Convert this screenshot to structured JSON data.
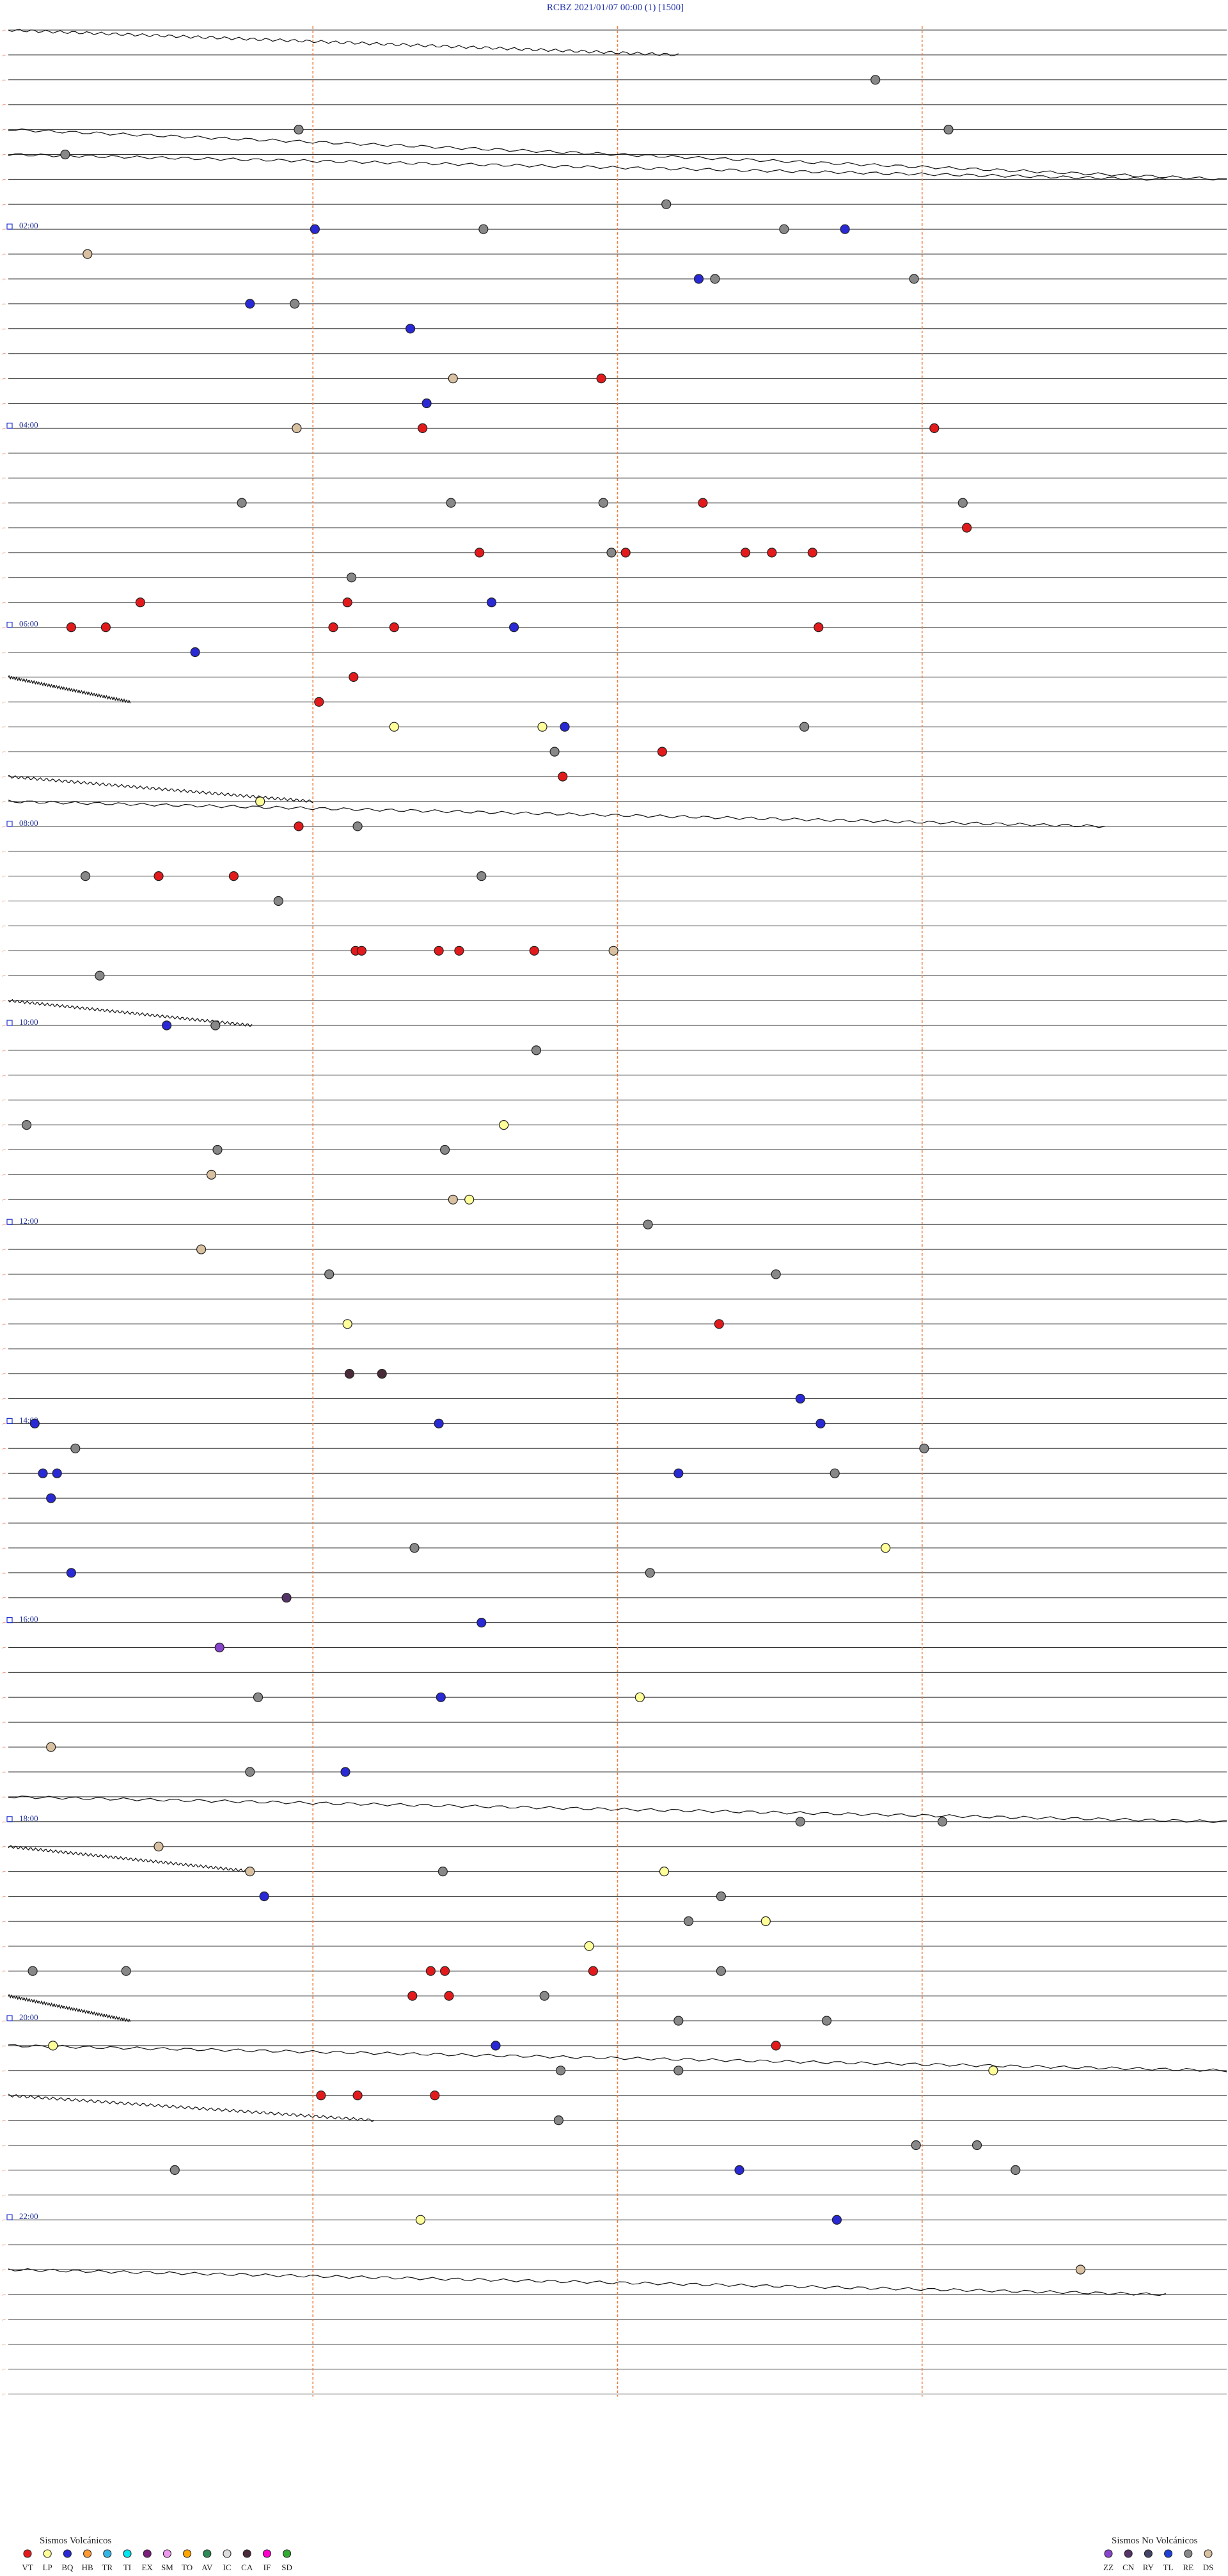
{
  "chart_data": {
    "type": "scatter",
    "title": "RCBZ    2021/01/07 00:00    (1)    [1500]",
    "hour_labels": [
      "02:00",
      "04:00",
      "06:00",
      "08:00",
      "10:00",
      "12:00",
      "14:00",
      "16:00",
      "18:00",
      "20:00",
      "22:00"
    ],
    "minute_grid": [
      15,
      30,
      45
    ],
    "rows_total": 96,
    "row_minutes": 15,
    "legend_left": {
      "title": "Sismos Volcánicos",
      "items": [
        {
          "code": "VT",
          "color": "#e31a1c"
        },
        {
          "code": "LP",
          "color": "#ffff99"
        },
        {
          "code": "BQ",
          "color": "#2929d6"
        },
        {
          "code": "HB",
          "color": "#ff9933"
        },
        {
          "code": "TR",
          "color": "#33b5e5"
        },
        {
          "code": "TI",
          "color": "#00e5ee"
        },
        {
          "code": "EX",
          "color": "#7a1f7a"
        },
        {
          "code": "SM",
          "color": "#ee99ee"
        },
        {
          "code": "TO",
          "color": "#ffa500"
        },
        {
          "code": "AV",
          "color": "#2e8b57"
        },
        {
          "code": "IC",
          "color": "#dddddd"
        },
        {
          "code": "CA",
          "color": "#4a2b3a"
        },
        {
          "code": "IF",
          "color": "#ff00cc"
        },
        {
          "code": "SD",
          "color": "#33aa33"
        }
      ]
    },
    "legend_right": {
      "title": "Sismos No Volcánicos",
      "items": [
        {
          "code": "ZZ",
          "color": "#8844cc"
        },
        {
          "code": "CN",
          "color": "#553366"
        },
        {
          "code": "RY",
          "color": "#444466"
        },
        {
          "code": "TL",
          "color": "#1f3fd6"
        },
        {
          "code": "RE",
          "color": "#888888"
        },
        {
          "code": "DS",
          "color": "#d8c0a0"
        }
      ]
    },
    "events": [
      {
        "row": 2,
        "min": 42.7,
        "type": "RE"
      },
      {
        "row": 4,
        "min": 14.3,
        "type": "RE"
      },
      {
        "row": 4,
        "min": 46.3,
        "type": "RE"
      },
      {
        "row": 5,
        "min": 2.8,
        "type": "RE"
      },
      {
        "row": 8,
        "min": 15.1,
        "type": "BQ"
      },
      {
        "row": 8,
        "min": 23.4,
        "type": "RE"
      },
      {
        "row": 8,
        "min": 41.2,
        "type": "BQ"
      },
      {
        "row": 7,
        "min": 32.4,
        "type": "RE"
      },
      {
        "row": 9,
        "min": 3.9,
        "type": "DS"
      },
      {
        "row": 8,
        "min": 38.2,
        "type": "RE"
      },
      {
        "row": 10,
        "min": 34.0,
        "type": "BQ"
      },
      {
        "row": 10,
        "min": 34.8,
        "type": "RE"
      },
      {
        "row": 10,
        "min": 44.6,
        "type": "RE"
      },
      {
        "row": 11,
        "min": 11.9,
        "type": "BQ"
      },
      {
        "row": 11,
        "min": 14.1,
        "type": "RE"
      },
      {
        "row": 12,
        "min": 19.8,
        "type": "BQ"
      },
      {
        "row": 14,
        "min": 21.9,
        "type": "DS"
      },
      {
        "row": 14,
        "min": 29.2,
        "type": "VT"
      },
      {
        "row": 15,
        "min": 20.6,
        "type": "BQ"
      },
      {
        "row": 16,
        "min": 14.2,
        "type": "DS"
      },
      {
        "row": 16,
        "min": 20.4,
        "type": "VT"
      },
      {
        "row": 16,
        "min": 45.6,
        "type": "VT"
      },
      {
        "row": 19,
        "min": 11.5,
        "type": "RE"
      },
      {
        "row": 19,
        "min": 21.8,
        "type": "RE"
      },
      {
        "row": 19,
        "min": 29.3,
        "type": "RE"
      },
      {
        "row": 19,
        "min": 34.2,
        "type": "VT"
      },
      {
        "row": 19,
        "min": 47.0,
        "type": "RE"
      },
      {
        "row": 20,
        "min": 47.2,
        "type": "VT"
      },
      {
        "row": 21,
        "min": 23.2,
        "type": "VT"
      },
      {
        "row": 21,
        "min": 29.7,
        "type": "RE"
      },
      {
        "row": 21,
        "min": 30.4,
        "type": "VT"
      },
      {
        "row": 21,
        "min": 36.3,
        "type": "VT"
      },
      {
        "row": 21,
        "min": 37.6,
        "type": "VT"
      },
      {
        "row": 21,
        "min": 39.6,
        "type": "VT"
      },
      {
        "row": 22,
        "min": 16.9,
        "type": "RE"
      },
      {
        "row": 23,
        "min": 16.7,
        "type": "VT"
      },
      {
        "row": 23,
        "min": 6.5,
        "type": "VT"
      },
      {
        "row": 23,
        "min": 23.8,
        "type": "BQ"
      },
      {
        "row": 24,
        "min": 3.1,
        "type": "VT"
      },
      {
        "row": 24,
        "min": 4.8,
        "type": "VT"
      },
      {
        "row": 24,
        "min": 16.0,
        "type": "VT"
      },
      {
        "row": 24,
        "min": 19.0,
        "type": "VT"
      },
      {
        "row": 24,
        "min": 24.9,
        "type": "BQ"
      },
      {
        "row": 24,
        "min": 39.9,
        "type": "VT"
      },
      {
        "row": 25,
        "min": 9.2,
        "type": "BQ"
      },
      {
        "row": 26,
        "min": 17.0,
        "type": "VT"
      },
      {
        "row": 27,
        "min": 15.3,
        "type": "VT"
      },
      {
        "row": 28,
        "min": 19.0,
        "type": "LP"
      },
      {
        "row": 28,
        "min": 26.3,
        "type": "LP"
      },
      {
        "row": 28,
        "min": 27.4,
        "type": "BQ"
      },
      {
        "row": 28,
        "min": 39.2,
        "type": "RE"
      },
      {
        "row": 29,
        "min": 26.9,
        "type": "RE"
      },
      {
        "row": 29,
        "min": 32.2,
        "type": "VT"
      },
      {
        "row": 30,
        "min": 27.3,
        "type": "VT"
      },
      {
        "row": 31,
        "min": 12.4,
        "type": "LP"
      },
      {
        "row": 32,
        "min": 14.3,
        "type": "VT"
      },
      {
        "row": 32,
        "min": 17.2,
        "type": "RE"
      },
      {
        "row": 34,
        "min": 3.8,
        "type": "RE"
      },
      {
        "row": 34,
        "min": 7.4,
        "type": "VT"
      },
      {
        "row": 34,
        "min": 11.1,
        "type": "VT"
      },
      {
        "row": 34,
        "min": 23.3,
        "type": "RE"
      },
      {
        "row": 35,
        "min": 13.3,
        "type": "RE"
      },
      {
        "row": 37,
        "min": 17.1,
        "type": "VT"
      },
      {
        "row": 37,
        "min": 17.4,
        "type": "VT"
      },
      {
        "row": 37,
        "min": 21.2,
        "type": "VT"
      },
      {
        "row": 37,
        "min": 25.9,
        "type": "VT"
      },
      {
        "row": 37,
        "min": 22.2,
        "type": "VT"
      },
      {
        "row": 37,
        "min": 29.8,
        "type": "DS"
      },
      {
        "row": 38,
        "min": 4.5,
        "type": "RE"
      },
      {
        "row": 40,
        "min": 7.8,
        "type": "BQ"
      },
      {
        "row": 40,
        "min": 10.2,
        "type": "RE"
      },
      {
        "row": 41,
        "min": 26.0,
        "type": "RE"
      },
      {
        "row": 44,
        "min": 0.9,
        "type": "RE"
      },
      {
        "row": 44,
        "min": 24.4,
        "type": "LP"
      },
      {
        "row": 45,
        "min": 10.3,
        "type": "RE"
      },
      {
        "row": 45,
        "min": 21.5,
        "type": "RE"
      },
      {
        "row": 46,
        "min": 10.0,
        "type": "DS"
      },
      {
        "row": 47,
        "min": 21.9,
        "type": "DS"
      },
      {
        "row": 47,
        "min": 22.7,
        "type": "LP"
      },
      {
        "row": 48,
        "min": 31.5,
        "type": "RE"
      },
      {
        "row": 49,
        "min": 9.5,
        "type": "DS"
      },
      {
        "row": 50,
        "min": 15.8,
        "type": "RE"
      },
      {
        "row": 50,
        "min": 37.8,
        "type": "RE"
      },
      {
        "row": 52,
        "min": 16.7,
        "type": "LP"
      },
      {
        "row": 52,
        "min": 35.0,
        "type": "VT"
      },
      {
        "row": 54,
        "min": 16.8,
        "type": "CA"
      },
      {
        "row": 54,
        "min": 18.4,
        "type": "CA"
      },
      {
        "row": 56,
        "min": 1.3,
        "type": "BQ"
      },
      {
        "row": 56,
        "min": 21.2,
        "type": "BQ"
      },
      {
        "row": 55,
        "min": 39.0,
        "type": "BQ"
      },
      {
        "row": 56,
        "min": 40.0,
        "type": "BQ"
      },
      {
        "row": 57,
        "min": 3.3,
        "type": "RE"
      },
      {
        "row": 57,
        "min": 45.1,
        "type": "RE"
      },
      {
        "row": 58,
        "min": 1.7,
        "type": "BQ"
      },
      {
        "row": 58,
        "min": 2.4,
        "type": "BQ"
      },
      {
        "row": 58,
        "min": 33.0,
        "type": "BQ"
      },
      {
        "row": 58,
        "min": 40.7,
        "type": "RE"
      },
      {
        "row": 59,
        "min": 2.1,
        "type": "BQ"
      },
      {
        "row": 61,
        "min": 20.0,
        "type": "RE"
      },
      {
        "row": 61,
        "min": 43.2,
        "type": "LP"
      },
      {
        "row": 62,
        "min": 31.6,
        "type": "RE"
      },
      {
        "row": 62,
        "min": 3.1,
        "type": "BQ"
      },
      {
        "row": 63,
        "min": 13.7,
        "type": "CN"
      },
      {
        "row": 64,
        "min": 23.3,
        "type": "BQ"
      },
      {
        "row": 65,
        "min": 10.4,
        "type": "ZZ"
      },
      {
        "row": 67,
        "min": 12.3,
        "type": "RE"
      },
      {
        "row": 67,
        "min": 21.3,
        "type": "BQ"
      },
      {
        "row": 67,
        "min": 31.1,
        "type": "LP"
      },
      {
        "row": 69,
        "min": 2.1,
        "type": "DS"
      },
      {
        "row": 70,
        "min": 11.9,
        "type": "RE"
      },
      {
        "row": 70,
        "min": 16.6,
        "type": "BQ"
      },
      {
        "row": 72,
        "min": 39.0,
        "type": "RE"
      },
      {
        "row": 72,
        "min": 46.0,
        "type": "RE"
      },
      {
        "row": 73,
        "min": 7.4,
        "type": "DS"
      },
      {
        "row": 74,
        "min": 32.3,
        "type": "LP"
      },
      {
        "row": 74,
        "min": 21.4,
        "type": "RE"
      },
      {
        "row": 74,
        "min": 11.9,
        "type": "DS"
      },
      {
        "row": 75,
        "min": 35.1,
        "type": "RE"
      },
      {
        "row": 75,
        "min": 12.6,
        "type": "BQ"
      },
      {
        "row": 76,
        "min": 37.3,
        "type": "LP"
      },
      {
        "row": 76,
        "min": 33.5,
        "type": "RE"
      },
      {
        "row": 77,
        "min": 28.6,
        "type": "LP"
      },
      {
        "row": 78,
        "min": 1.2,
        "type": "RE"
      },
      {
        "row": 78,
        "min": 5.8,
        "type": "RE"
      },
      {
        "row": 78,
        "min": 20.8,
        "type": "VT"
      },
      {
        "row": 78,
        "min": 21.5,
        "type": "VT"
      },
      {
        "row": 78,
        "min": 28.8,
        "type": "VT"
      },
      {
        "row": 78,
        "min": 35.1,
        "type": "RE"
      },
      {
        "row": 79,
        "min": 19.9,
        "type": "VT"
      },
      {
        "row": 79,
        "min": 21.7,
        "type": "VT"
      },
      {
        "row": 79,
        "min": 26.4,
        "type": "RE"
      },
      {
        "row": 80,
        "min": 40.3,
        "type": "RE"
      },
      {
        "row": 80,
        "min": 33.0,
        "type": "RE"
      },
      {
        "row": 81,
        "min": 2.2,
        "type": "LP"
      },
      {
        "row": 81,
        "min": 24.0,
        "type": "BQ"
      },
      {
        "row": 81,
        "min": 37.8,
        "type": "VT"
      },
      {
        "row": 82,
        "min": 48.5,
        "type": "LP"
      },
      {
        "row": 82,
        "min": 27.2,
        "type": "RE"
      },
      {
        "row": 82,
        "min": 33.0,
        "type": "RE"
      },
      {
        "row": 83,
        "min": 15.4,
        "type": "VT"
      },
      {
        "row": 83,
        "min": 17.2,
        "type": "VT"
      },
      {
        "row": 83,
        "min": 21.0,
        "type": "VT"
      },
      {
        "row": 84,
        "min": 27.1,
        "type": "RE"
      },
      {
        "row": 85,
        "min": 44.7,
        "type": "RE"
      },
      {
        "row": 85,
        "min": 47.7,
        "type": "RE"
      },
      {
        "row": 86,
        "min": 8.2,
        "type": "RE"
      },
      {
        "row": 86,
        "min": 36.0,
        "type": "BQ"
      },
      {
        "row": 86,
        "min": 49.6,
        "type": "RE"
      },
      {
        "row": 88,
        "min": 20.3,
        "type": "LP"
      },
      {
        "row": 88,
        "min": 40.8,
        "type": "BQ"
      },
      {
        "row": 90,
        "min": 52.8,
        "type": "DS"
      }
    ]
  }
}
